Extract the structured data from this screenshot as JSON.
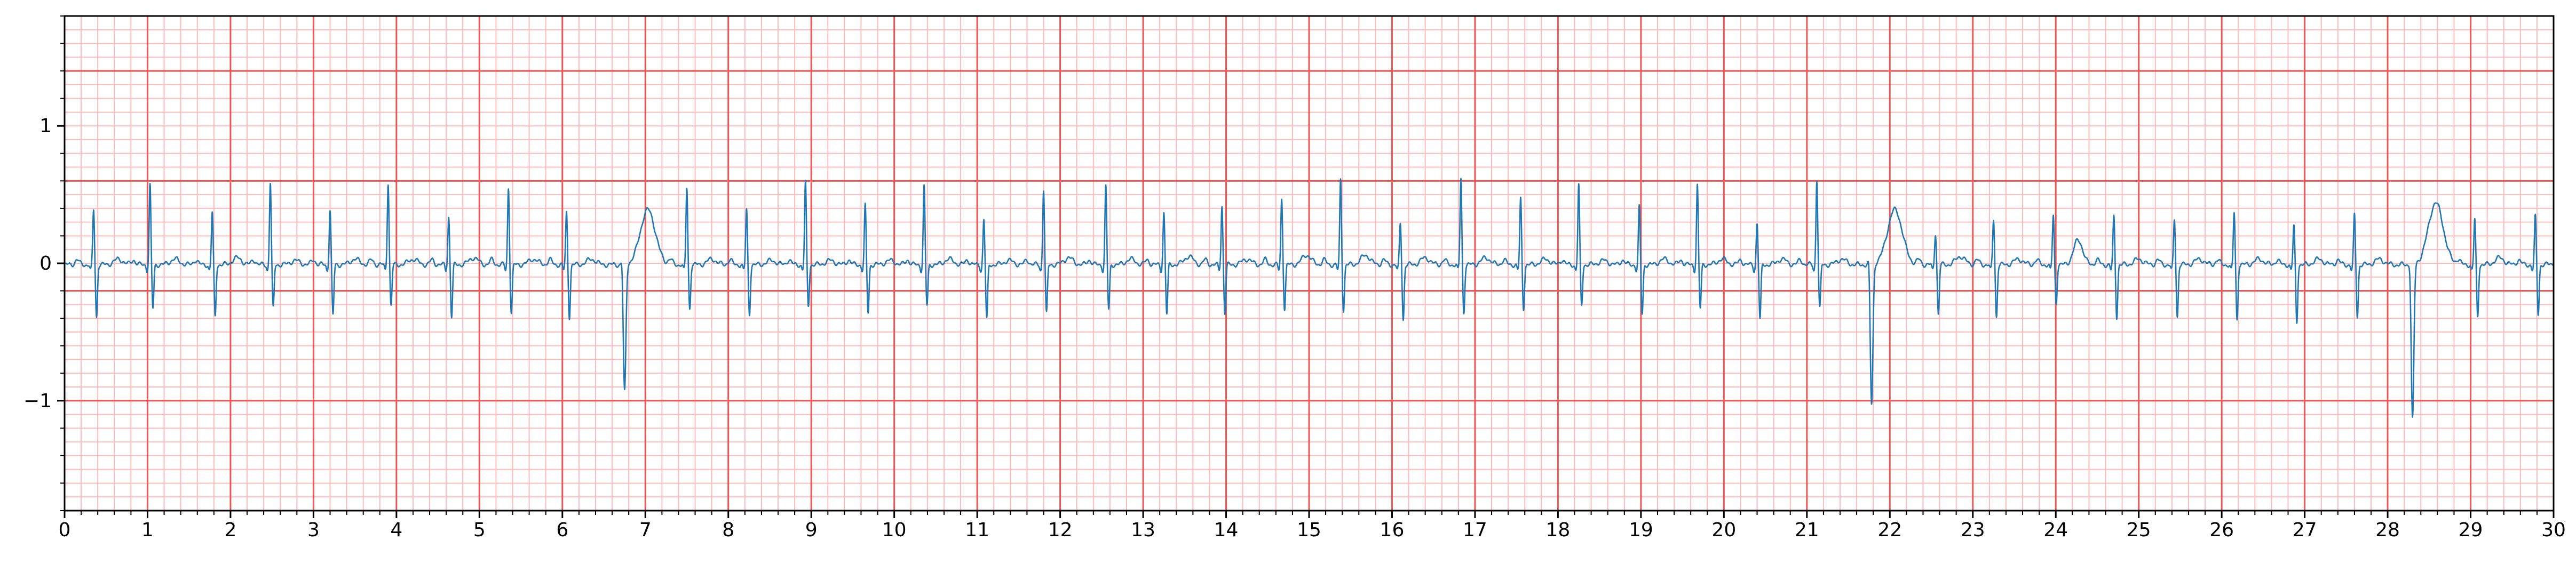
{
  "chart_data": {
    "type": "line",
    "title": "",
    "xlabel": "",
    "ylabel": "",
    "xlim": [
      0,
      30
    ],
    "ylim": [
      -1.8,
      1.8
    ],
    "x_ticks": [
      "0",
      "1",
      "2",
      "3",
      "4",
      "5",
      "6",
      "7",
      "8",
      "9",
      "10",
      "11",
      "12",
      "13",
      "14",
      "15",
      "16",
      "17",
      "18",
      "19",
      "20",
      "21",
      "22",
      "23",
      "24",
      "25",
      "26",
      "27",
      "28",
      "29",
      "30"
    ],
    "y_ticks": [
      {
        "value": 1,
        "label": "1"
      },
      {
        "value": 0,
        "label": "0"
      },
      {
        "value": -1,
        "label": "−1"
      }
    ],
    "grid": {
      "major_x": 1,
      "major_y": 0.8,
      "minor_x": 0.2,
      "minor_y": 0.1,
      "major_color": "#ee5555",
      "minor_color": "#ffbbbb"
    },
    "legend": "none",
    "series": [
      {
        "color": "#1f77b4",
        "beats": [
          {
            "t": 0.35,
            "r": 0.4,
            "s": -0.38,
            "amp_t": 0.04
          },
          {
            "t": 1.03,
            "r": 0.58,
            "s": -0.32,
            "amp_t": 0.04
          },
          {
            "t": 1.78,
            "r": 0.38,
            "s": -0.38,
            "amp_t": 0.05
          },
          {
            "t": 2.48,
            "r": 0.6,
            "s": -0.32,
            "amp_t": 0.03
          },
          {
            "t": 3.2,
            "r": 0.4,
            "s": -0.37,
            "amp_t": 0.04
          },
          {
            "t": 3.9,
            "r": 0.6,
            "s": -0.3,
            "amp_t": 0.04
          },
          {
            "t": 4.63,
            "r": 0.35,
            "s": -0.38,
            "amp_t": 0.05
          },
          {
            "t": 5.35,
            "r": 0.56,
            "s": -0.35,
            "amp_t": 0.04
          },
          {
            "t": 6.05,
            "r": 0.38,
            "s": -0.38,
            "amp_t": 0.04
          },
          {
            "t": 6.75,
            "r": 0.08,
            "s": -0.93,
            "amp_t": 0.4,
            "ectopic": true
          },
          {
            "t": 7.5,
            "r": 0.56,
            "s": -0.32,
            "amp_t": 0.04
          },
          {
            "t": 8.22,
            "r": 0.4,
            "s": -0.36,
            "amp_t": 0.03
          },
          {
            "t": 8.93,
            "r": 0.6,
            "s": -0.3,
            "amp_t": 0.03
          },
          {
            "t": 9.65,
            "r": 0.43,
            "s": -0.35,
            "amp_t": 0.03
          },
          {
            "t": 10.36,
            "r": 0.57,
            "s": -0.3,
            "amp_t": 0.04
          },
          {
            "t": 11.08,
            "r": 0.33,
            "s": -0.4,
            "amp_t": 0.03
          },
          {
            "t": 11.8,
            "r": 0.55,
            "s": -0.36,
            "amp_t": 0.05
          },
          {
            "t": 12.55,
            "r": 0.57,
            "s": -0.33,
            "amp_t": 0.04
          },
          {
            "t": 13.25,
            "r": 0.38,
            "s": -0.36,
            "amp_t": 0.06
          },
          {
            "t": 13.95,
            "r": 0.43,
            "s": -0.35,
            "amp_t": 0.04
          },
          {
            "t": 14.67,
            "r": 0.48,
            "s": -0.32,
            "amp_t": 0.07
          },
          {
            "t": 15.38,
            "r": 0.62,
            "s": -0.33,
            "amp_t": 0.07
          },
          {
            "t": 16.1,
            "r": 0.3,
            "s": -0.4,
            "amp_t": 0.05
          },
          {
            "t": 16.83,
            "r": 0.63,
            "s": -0.35,
            "amp_t": 0.05
          },
          {
            "t": 17.55,
            "r": 0.48,
            "s": -0.32,
            "amp_t": 0.04
          },
          {
            "t": 18.25,
            "r": 0.58,
            "s": -0.3,
            "amp_t": 0.03
          },
          {
            "t": 18.98,
            "r": 0.42,
            "s": -0.36,
            "amp_t": 0.04
          },
          {
            "t": 19.68,
            "r": 0.58,
            "s": -0.32,
            "amp_t": 0.04
          },
          {
            "t": 20.4,
            "r": 0.3,
            "s": -0.4,
            "amp_t": 0.04
          },
          {
            "t": 21.12,
            "r": 0.62,
            "s": -0.32,
            "amp_t": 0.04
          },
          {
            "t": 21.78,
            "r": 0.08,
            "s": -1.02,
            "amp_t": 0.4,
            "ectopic": true
          },
          {
            "t": 22.55,
            "r": 0.23,
            "s": -0.36,
            "amp_t": 0.06
          },
          {
            "t": 23.25,
            "r": 0.33,
            "s": -0.38,
            "amp_t": 0.04
          },
          {
            "t": 23.97,
            "r": 0.36,
            "s": -0.28,
            "amp_t": 0.18
          },
          {
            "t": 24.7,
            "r": 0.35,
            "s": -0.38,
            "amp_t": 0.04
          },
          {
            "t": 25.43,
            "r": 0.33,
            "s": -0.38,
            "amp_t": 0.04
          },
          {
            "t": 26.15,
            "r": 0.38,
            "s": -0.4,
            "amp_t": 0.04
          },
          {
            "t": 26.87,
            "r": 0.28,
            "s": -0.42,
            "amp_t": 0.04
          },
          {
            "t": 27.6,
            "r": 0.36,
            "s": -0.38,
            "amp_t": 0.04
          },
          {
            "t": 28.3,
            "r": 0.06,
            "s": -1.13,
            "amp_t": 0.45,
            "ectopic": true
          },
          {
            "t": 29.05,
            "r": 0.33,
            "s": -0.38,
            "amp_t": 0.05
          },
          {
            "t": 29.78,
            "r": 0.35,
            "s": -0.36,
            "amp_t": 0.04
          }
        ]
      }
    ]
  }
}
